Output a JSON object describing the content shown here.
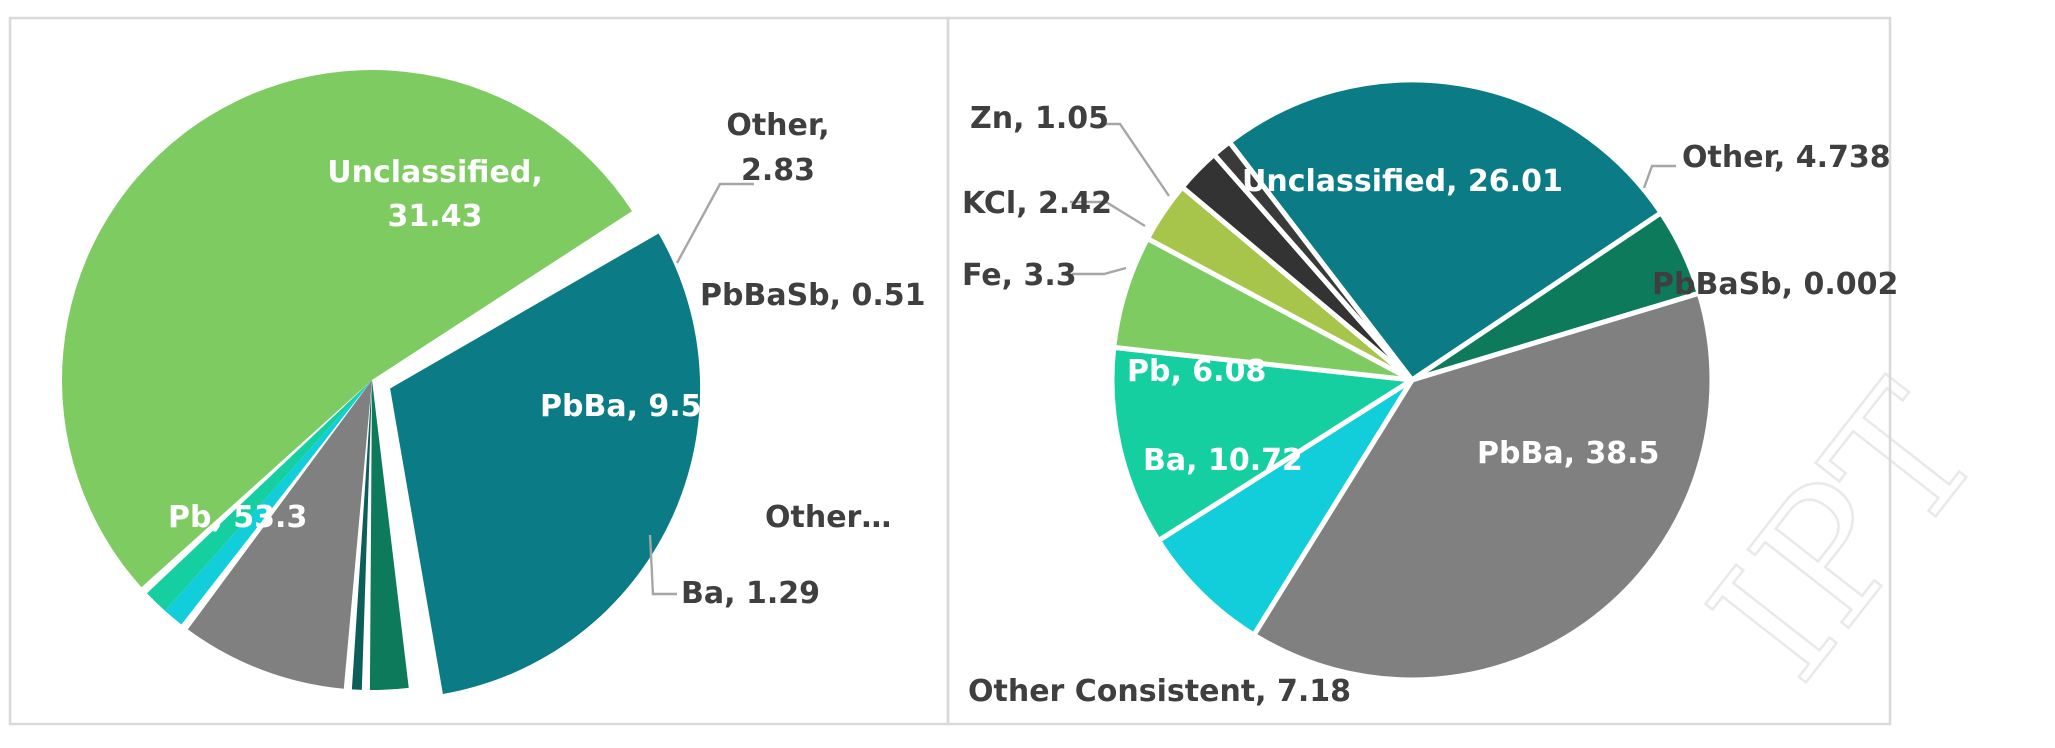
{
  "chart_data": [
    {
      "type": "pie",
      "title": "",
      "legend": "none",
      "slices": [
        {
          "label": "Unclassified",
          "value": 31.43,
          "color": "#0b7b85"
        },
        {
          "label": "Other",
          "value": 2.83,
          "color": "#0e7a5c"
        },
        {
          "label": "PbBaSb",
          "value": 0.51,
          "color": "#0c5e5a"
        },
        {
          "label": "PbBa",
          "value": 9.5,
          "color": "#808080"
        },
        {
          "label": "Other...",
          "value": 1.1,
          "color": "#12cedb"
        },
        {
          "label": "Ba",
          "value": 1.29,
          "color": "#15cfa0"
        },
        {
          "label": "Pb",
          "value": 53.3,
          "color": "#7ecb62"
        }
      ],
      "data_labels": [
        {
          "text": "Unclassified,",
          "text2": "31.43"
        },
        {
          "text": "Other,",
          "text2": "2.83"
        },
        {
          "text": "PbBaSb, 0.51"
        },
        {
          "text": "PbBa, 9.5"
        },
        {
          "text": "Other…"
        },
        {
          "text": "Ba, 1.29"
        },
        {
          "text": "Pb, 53.3"
        }
      ]
    },
    {
      "type": "pie",
      "title": "",
      "legend": "none",
      "slices": [
        {
          "label": "Unclassified",
          "value": 26.01,
          "color": "#0b7b85"
        },
        {
          "label": "Other",
          "value": 4.738,
          "color": "#0e7a5c"
        },
        {
          "label": "PbBaSb",
          "value": 0.002,
          "color": "#0c5e5a"
        },
        {
          "label": "PbBa",
          "value": 38.5,
          "color": "#808080"
        },
        {
          "label": "Other Consistent",
          "value": 7.18,
          "color": "#12cedb"
        },
        {
          "label": "Ba",
          "value": 10.72,
          "color": "#15cfa0"
        },
        {
          "label": "Pb",
          "value": 6.08,
          "color": "#7ecb62"
        },
        {
          "label": "Fe",
          "value": 3.3,
          "color": "#a7c54a"
        },
        {
          "label": "KCl",
          "value": 2.42,
          "color": "#333333"
        },
        {
          "label": "Zn",
          "value": 1.05,
          "color": "#3a3a3a"
        }
      ],
      "data_labels": [
        {
          "text": "Unclassified, 26.01"
        },
        {
          "text": "Other, 4.738"
        },
        {
          "text": "PbBaSb, 0.002"
        },
        {
          "text": "PbBa, 38.5"
        },
        {
          "text": "Other Consistent, 7.18"
        },
        {
          "text": "Ba, 10.72"
        },
        {
          "text": "Pb, 6.08"
        },
        {
          "text": "Fe, 3.3"
        },
        {
          "text": "KCl, 2.42"
        },
        {
          "text": "Zn, 1.05"
        }
      ]
    }
  ]
}
